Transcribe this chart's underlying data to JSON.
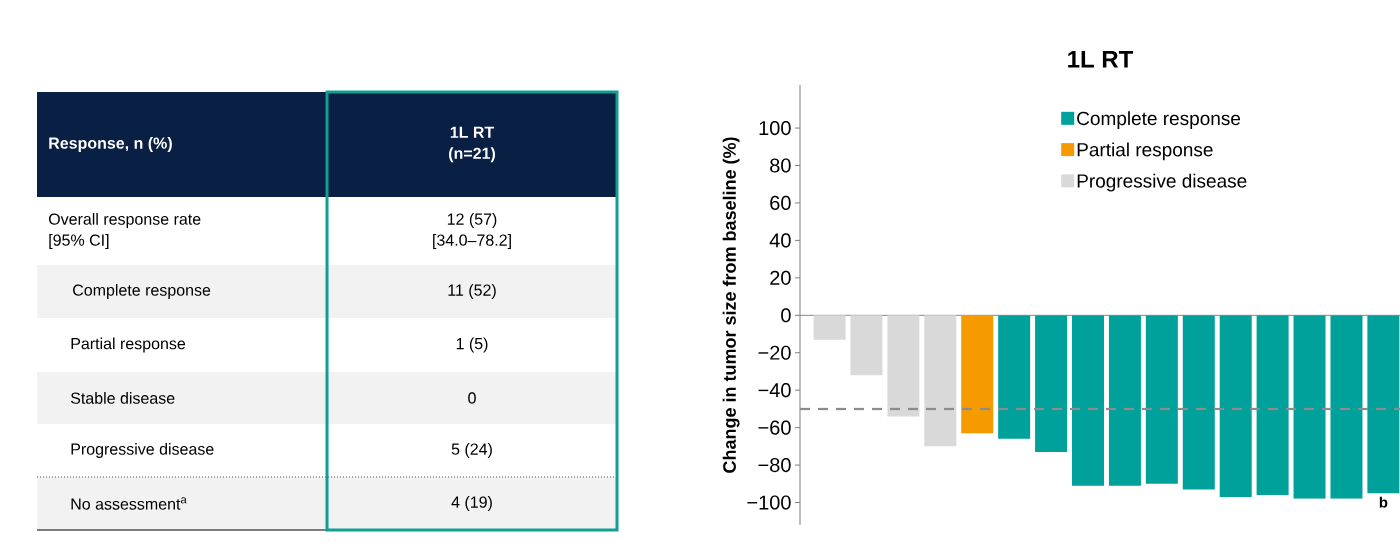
{
  "chart_data": [
    {
      "type": "other",
      "annotations": [
        "Response, n (%)",
        "1L RT",
        "(n=21)",
        "Overall response rate",
        "[95% CI]",
        "12 (57)",
        "[34.0–78.2]",
        "Complete response",
        "11 (52)",
        "Partial response",
        "1 (5)",
        "Stable disease",
        "0",
        "Progressive disease",
        "5 (24)",
        "No assessment$^{a}$",
        "4 (19)"
      ]
    },
    {
      "type": "bar",
      "title": "1L RT",
      "ylabel": "Change in tumor size from baseline (%)",
      "categories": [
        null,
        null,
        null,
        null,
        null,
        null,
        null,
        null,
        null,
        null,
        null,
        null,
        null,
        null,
        null,
        null
      ],
      "series": [
        {
          "name": "Complete response",
          "color": "#00a19a",
          "values": [
            null,
            null,
            null,
            null,
            null,
            -66,
            -73,
            -91,
            -91,
            -90,
            -93,
            -97,
            -96,
            -98,
            -98,
            -95
          ]
        },
        {
          "name": "Partial response",
          "color": "#f59b00",
          "values": [
            null,
            null,
            null,
            null,
            -63,
            null,
            null,
            null,
            null,
            null,
            null,
            null,
            null,
            null,
            null,
            null
          ]
        },
        {
          "name": "Progressive disease",
          "color": "#d9d9d9",
          "values": [
            -13,
            -32,
            -54,
            -70,
            null,
            null,
            null,
            null,
            null,
            null,
            null,
            null,
            null,
            null,
            null,
            null
          ]
        }
      ],
      "ylim": [
        -112,
        123
      ],
      "yticks": [
        {
          "value": -100,
          "label": "−100"
        },
        {
          "value": -80,
          "label": "−80"
        },
        {
          "value": -60,
          "label": "−60"
        },
        {
          "value": -40,
          "label": "−40"
        },
        {
          "value": -20,
          "label": "−20"
        },
        0,
        20,
        40,
        60,
        80,
        100
      ],
      "ref_lines": [
        {
          "axis": "y",
          "value": -50,
          "color": "#8c8c8c",
          "line_style": "dashed"
        }
      ],
      "annotations": [
        "b"
      ],
      "legend": "top right"
    }
  ]
}
